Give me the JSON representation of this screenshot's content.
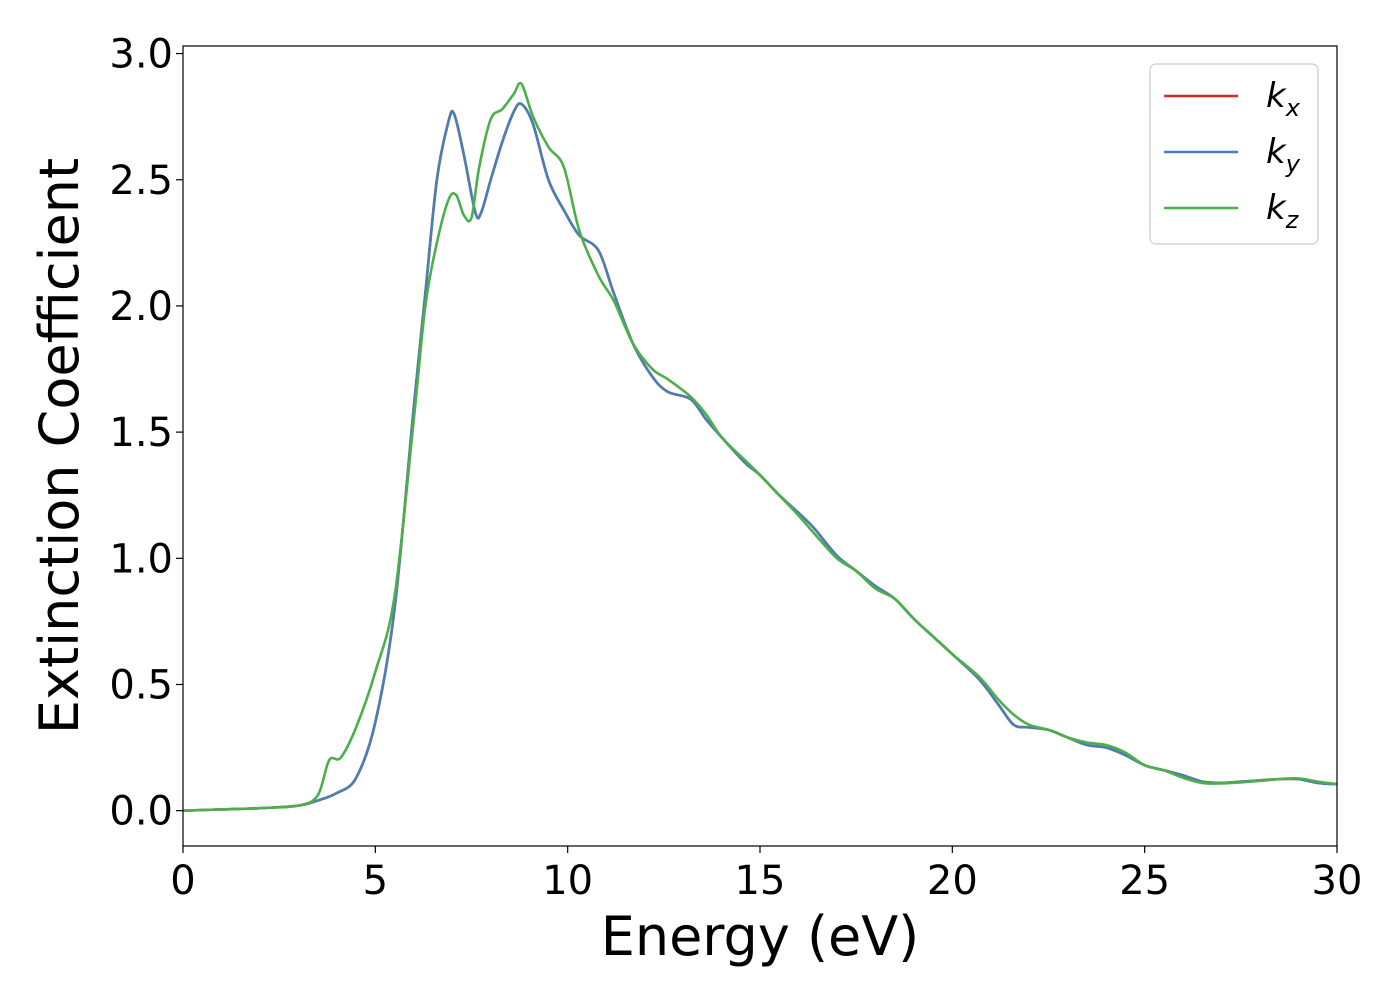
{
  "chart_data": {
    "type": "line",
    "xlabel": "Energy (eV)",
    "ylabel": "Extinction Coefficient",
    "xlim": [
      0,
      30
    ],
    "ylim": [
      -0.14,
      3.03
    ],
    "xticks": [
      0,
      5,
      10,
      15,
      20,
      25,
      30
    ],
    "yticks": [
      0.0,
      0.5,
      1.0,
      1.5,
      2.0,
      2.5,
      3.0
    ],
    "xtick_labels": [
      "0",
      "5",
      "10",
      "15",
      "20",
      "25",
      "30"
    ],
    "ytick_labels": [
      "0.0",
      "0.5",
      "1.0",
      "1.5",
      "2.0",
      "2.5",
      "3.0"
    ],
    "grid": false,
    "legend_position": "top-right",
    "series": [
      {
        "name": "k",
        "subscript": "x",
        "color": "#d62728",
        "x": [
          0,
          1,
          2,
          3,
          3.5,
          4,
          4.5,
          5,
          5.5,
          6,
          6.3,
          6.6,
          6.9,
          7.05,
          7.3,
          7.6,
          7.75,
          8,
          8.3,
          8.6,
          8.8,
          9.1,
          9.5,
          9.9,
          10.3,
          10.8,
          11.2,
          11.7,
          12.2,
          12.6,
          13.2,
          13.6,
          14,
          14.6,
          15,
          15.5,
          16,
          16.4,
          17,
          17.5,
          18,
          18.5,
          19,
          19.5,
          20,
          20.7,
          21.2,
          21.6,
          22,
          22.5,
          23,
          23.5,
          24,
          24.5,
          25,
          25.5,
          26,
          26.5,
          27,
          27.5,
          28,
          28.5,
          29,
          29.5,
          30
        ],
        "y": [
          0.0,
          0.005,
          0.01,
          0.02,
          0.04,
          0.07,
          0.13,
          0.35,
          0.8,
          1.6,
          2.05,
          2.5,
          2.73,
          2.76,
          2.6,
          2.37,
          2.37,
          2.5,
          2.65,
          2.77,
          2.8,
          2.72,
          2.5,
          2.38,
          2.28,
          2.22,
          2.05,
          1.85,
          1.72,
          1.66,
          1.63,
          1.55,
          1.48,
          1.38,
          1.33,
          1.25,
          1.18,
          1.12,
          1.01,
          0.95,
          0.89,
          0.84,
          0.76,
          0.69,
          0.62,
          0.52,
          0.42,
          0.34,
          0.33,
          0.32,
          0.29,
          0.26,
          0.25,
          0.22,
          0.18,
          0.16,
          0.14,
          0.115,
          0.11,
          0.115,
          0.12,
          0.125,
          0.125,
          0.11,
          0.105
        ]
      },
      {
        "name": "k",
        "subscript": "y",
        "color": "#4a7fb5",
        "x": [
          0,
          1,
          2,
          3,
          3.5,
          4,
          4.5,
          5,
          5.5,
          6,
          6.3,
          6.6,
          6.9,
          7.05,
          7.3,
          7.6,
          7.75,
          8,
          8.3,
          8.6,
          8.8,
          9.1,
          9.5,
          9.9,
          10.3,
          10.8,
          11.2,
          11.7,
          12.2,
          12.6,
          13.2,
          13.6,
          14,
          14.6,
          15,
          15.5,
          16,
          16.4,
          17,
          17.5,
          18,
          18.5,
          19,
          19.5,
          20,
          20.7,
          21.2,
          21.6,
          22,
          22.5,
          23,
          23.5,
          24,
          24.5,
          25,
          25.5,
          26,
          26.5,
          27,
          27.5,
          28,
          28.5,
          29,
          29.5,
          30
        ],
        "y": [
          0.0,
          0.005,
          0.01,
          0.02,
          0.04,
          0.07,
          0.13,
          0.35,
          0.8,
          1.6,
          2.05,
          2.5,
          2.73,
          2.76,
          2.6,
          2.37,
          2.37,
          2.5,
          2.65,
          2.77,
          2.8,
          2.72,
          2.5,
          2.38,
          2.28,
          2.22,
          2.05,
          1.85,
          1.72,
          1.66,
          1.63,
          1.55,
          1.48,
          1.38,
          1.33,
          1.25,
          1.18,
          1.12,
          1.01,
          0.95,
          0.89,
          0.84,
          0.76,
          0.69,
          0.62,
          0.52,
          0.42,
          0.34,
          0.33,
          0.32,
          0.29,
          0.26,
          0.25,
          0.22,
          0.18,
          0.16,
          0.14,
          0.115,
          0.11,
          0.115,
          0.12,
          0.125,
          0.125,
          0.11,
          0.105
        ]
      },
      {
        "name": "k",
        "subscript": "z",
        "color": "#4daf4a",
        "x": [
          0,
          1,
          2,
          3,
          3.5,
          3.8,
          4.1,
          4.5,
          5,
          5.5,
          6,
          6.3,
          6.6,
          6.9,
          7.1,
          7.3,
          7.5,
          7.7,
          8,
          8.3,
          8.6,
          8.8,
          9.1,
          9.5,
          9.9,
          10.3,
          10.8,
          11.2,
          11.7,
          12.2,
          12.6,
          13.2,
          13.6,
          14,
          14.6,
          15,
          15.5,
          16,
          16.4,
          17,
          17.5,
          18,
          18.5,
          19,
          19.5,
          20,
          20.7,
          21.2,
          21.6,
          22,
          22.5,
          23,
          23.5,
          24,
          24.5,
          25,
          25.5,
          26,
          26.5,
          27,
          27.5,
          28,
          28.5,
          29,
          29.5,
          30
        ],
        "y": [
          0.0,
          0.005,
          0.01,
          0.02,
          0.06,
          0.2,
          0.21,
          0.33,
          0.55,
          0.85,
          1.55,
          2.0,
          2.25,
          2.42,
          2.44,
          2.36,
          2.35,
          2.55,
          2.74,
          2.78,
          2.84,
          2.88,
          2.75,
          2.63,
          2.55,
          2.3,
          2.12,
          2.02,
          1.85,
          1.75,
          1.71,
          1.64,
          1.57,
          1.48,
          1.39,
          1.33,
          1.25,
          1.17,
          1.1,
          1.0,
          0.95,
          0.88,
          0.84,
          0.76,
          0.69,
          0.62,
          0.53,
          0.44,
          0.38,
          0.34,
          0.32,
          0.29,
          0.27,
          0.26,
          0.23,
          0.18,
          0.16,
          0.13,
          0.11,
          0.108,
          0.112,
          0.118,
          0.125,
          0.128,
          0.115,
          0.105
        ]
      }
    ]
  }
}
